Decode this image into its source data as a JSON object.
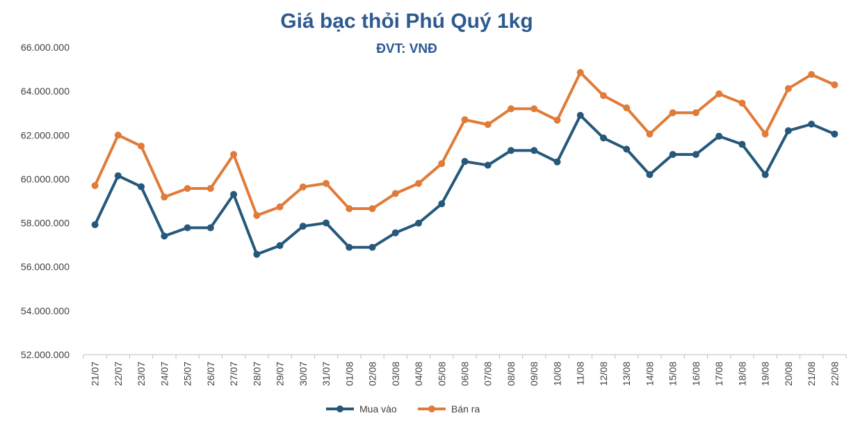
{
  "chart_data": {
    "type": "line",
    "title": "Giá bạc thỏi Phú Quý 1kg",
    "subtitle": "ĐVT: VNĐ",
    "categories": [
      "21/07",
      "22/07",
      "23/07",
      "24/07",
      "25/07",
      "26/07",
      "27/07",
      "28/07",
      "29/07",
      "30/07",
      "31/07",
      "01/08",
      "02/08",
      "03/08",
      "04/08",
      "05/08",
      "06/08",
      "07/08",
      "08/08",
      "09/08",
      "10/08",
      "11/08",
      "12/08",
      "13/08",
      "14/08",
      "15/08",
      "16/08",
      "17/08",
      "18/08",
      "19/08",
      "20/08",
      "21/08",
      "22/08"
    ],
    "series": [
      {
        "name": "Mua vào",
        "color": "#25587a",
        "values": [
          57920000,
          60150000,
          59650000,
          57400000,
          57780000,
          57780000,
          59300000,
          56570000,
          56970000,
          57850000,
          58000000,
          56890000,
          56890000,
          57550000,
          57990000,
          58870000,
          60800000,
          60630000,
          61300000,
          61300000,
          60780000,
          62900000,
          61870000,
          61360000,
          60200000,
          61120000,
          61120000,
          61950000,
          61580000,
          60200000,
          62200000,
          62500000,
          62050000
        ]
      },
      {
        "name": "Bán ra",
        "color": "#e07b39",
        "values": [
          59700000,
          62000000,
          61500000,
          59180000,
          59570000,
          59570000,
          61120000,
          58340000,
          58730000,
          59640000,
          59800000,
          58650000,
          58650000,
          59340000,
          59800000,
          60700000,
          62700000,
          62480000,
          63200000,
          63200000,
          62680000,
          64850000,
          63800000,
          63240000,
          62050000,
          63020000,
          63020000,
          63880000,
          63460000,
          62050000,
          64120000,
          64760000,
          64290000
        ]
      }
    ],
    "y_ticks": [
      "52.000.000",
      "54.000.000",
      "56.000.000",
      "58.000.000",
      "60.000.000",
      "62.000.000",
      "64.000.000",
      "66.000.000"
    ],
    "ylim": [
      52000000,
      66000000
    ],
    "grid": false,
    "legend_position": "bottom"
  }
}
